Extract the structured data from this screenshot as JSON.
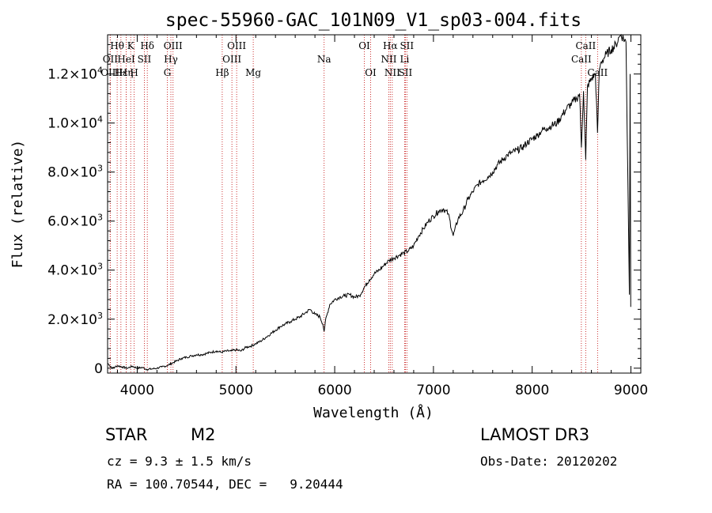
{
  "chart_data": {
    "type": "line",
    "title": "spec-55960-GAC_101N09_V1_sp03-004.fits",
    "xlabel": "Wavelength (Å)",
    "ylabel": "Flux (relative)",
    "xlim": [
      3700,
      9100
    ],
    "ylim": [
      -200,
      13600
    ],
    "x_ticks": [
      4000,
      5000,
      6000,
      7000,
      8000,
      9000
    ],
    "x_tick_labels": [
      "4000",
      "5000",
      "6000",
      "7000",
      "8000",
      "9000"
    ],
    "y_ticks": [
      0,
      2000,
      4000,
      6000,
      8000,
      10000,
      12000
    ],
    "y_tick_labels": [
      {
        "mantissa": "0",
        "exp": ""
      },
      {
        "mantissa": "2.0×10",
        "exp": "3"
      },
      {
        "mantissa": "4.0×10",
        "exp": "3"
      },
      {
        "mantissa": "6.0×10",
        "exp": "3"
      },
      {
        "mantissa": "8.0×10",
        "exp": "3"
      },
      {
        "mantissa": "1.0×10",
        "exp": "4"
      },
      {
        "mantissa": "1.2×10",
        "exp": "4"
      }
    ],
    "series": [
      {
        "name": "spectrum",
        "x": [
          3700,
          3750,
          3800,
          3850,
          3900,
          3950,
          4000,
          4050,
          4100,
          4150,
          4200,
          4250,
          4300,
          4350,
          4400,
          4450,
          4500,
          4550,
          4600,
          4650,
          4700,
          4750,
          4800,
          4850,
          4900,
          4950,
          5000,
          5050,
          5100,
          5150,
          5200,
          5250,
          5300,
          5350,
          5400,
          5450,
          5500,
          5550,
          5600,
          5650,
          5700,
          5750,
          5800,
          5850,
          5880,
          5893,
          5905,
          5950,
          6000,
          6050,
          6100,
          6150,
          6200,
          6250,
          6300,
          6350,
          6400,
          6450,
          6500,
          6550,
          6600,
          6650,
          6700,
          6750,
          6800,
          6850,
          6900,
          6950,
          7000,
          7050,
          7100,
          7150,
          7200,
          7250,
          7300,
          7350,
          7400,
          7450,
          7500,
          7550,
          7600,
          7650,
          7700,
          7750,
          7800,
          7850,
          7900,
          7950,
          8000,
          8050,
          8100,
          8150,
          8200,
          8250,
          8300,
          8350,
          8400,
          8450,
          8480,
          8498,
          8520,
          8542,
          8560,
          8600,
          8640,
          8662,
          8680,
          8700,
          8750,
          8800,
          8850,
          8880,
          8900,
          8950,
          8985,
          8992,
          8998
        ],
        "y": [
          200,
          0,
          100,
          50,
          0,
          80,
          0,
          30,
          -50,
          -30,
          0,
          50,
          100,
          200,
          300,
          400,
          450,
          500,
          550,
          550,
          600,
          650,
          700,
          650,
          700,
          700,
          750,
          700,
          850,
          900,
          1000,
          1100,
          1250,
          1400,
          1550,
          1700,
          1800,
          1900,
          2000,
          2100,
          2250,
          2400,
          2200,
          2100,
          1800,
          1500,
          1900,
          2600,
          2800,
          2900,
          2950,
          3000,
          2900,
          2950,
          3300,
          3600,
          3850,
          4000,
          4200,
          4400,
          4500,
          4600,
          4700,
          4800,
          5000,
          5400,
          5700,
          6000,
          6200,
          6400,
          6500,
          6300,
          5400,
          6100,
          6400,
          6900,
          7200,
          7500,
          7650,
          7800,
          8000,
          8300,
          8500,
          8700,
          8800,
          8900,
          9000,
          9200,
          9350,
          9500,
          9700,
          9800,
          9900,
          10000,
          10300,
          10600,
          10800,
          11000,
          11200,
          9000,
          11300,
          8500,
          11500,
          11800,
          12000,
          9600,
          12200,
          12500,
          12800,
          13000,
          13200,
          13500,
          13600,
          13300,
          3000,
          12000,
          2500
        ]
      }
    ],
    "lines_top": [
      {
        "label": "Hθ",
        "x": 3797
      },
      {
        "label": "K",
        "x": 3934
      },
      {
        "label": "Hδ",
        "x": 4102
      },
      {
        "label": "OIII",
        "x": 4363
      },
      {
        "label": "OIII",
        "x": 5007
      },
      {
        "label": "OI",
        "x": 6300
      },
      {
        "label": "Hα",
        "x": 6563
      },
      {
        "label": "SII",
        "x": 6731
      },
      {
        "label": "CaII",
        "x": 8542
      }
    ],
    "lines_mid": [
      {
        "label": "OII",
        "x": 3727
      },
      {
        "label": "HeI",
        "x": 3889
      },
      {
        "label": "SII",
        "x": 4072
      },
      {
        "label": "Hγ",
        "x": 4341
      },
      {
        "label": "OIII",
        "x": 4959
      },
      {
        "label": "Na",
        "x": 5893
      },
      {
        "label": "NII",
        "x": 6548
      },
      {
        "label": "Li",
        "x": 6708
      },
      {
        "label": "CaII",
        "x": 8498
      }
    ],
    "lines_low": [
      {
        "label": "OIII",
        "x": 3726
      },
      {
        "label": "Hε",
        "x": 3835
      },
      {
        "label": "Hη",
        "x": 3889
      },
      {
        "label": "H",
        "x": 3969
      },
      {
        "label": "G",
        "x": 4305
      },
      {
        "label": "Hβ",
        "x": 4861
      },
      {
        "label": "Mg",
        "x": 5175
      },
      {
        "label": "OI",
        "x": 6364
      },
      {
        "label": "NII",
        "x": 6583
      },
      {
        "label": "SII",
        "x": 6716
      },
      {
        "label": "CaII",
        "x": 8662
      }
    ]
  },
  "footer": {
    "object_class": "STAR",
    "subclass": "M2",
    "survey": "LAMOST DR3",
    "redshift_text": "cz = 9.3 ± 1.5 km/s",
    "obs_date_text": "Obs-Date: 20120202",
    "coords_text": "RA = 100.70544, DEC =   9.20444"
  },
  "colors": {
    "spectrum": "#000000",
    "line_markers": "#c00000",
    "axes": "#000000"
  }
}
